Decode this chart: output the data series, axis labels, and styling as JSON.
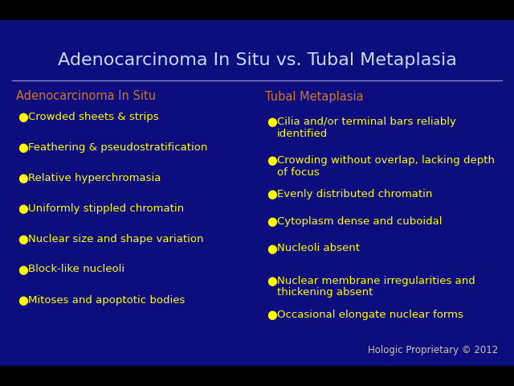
{
  "title": "Adenocarcinoma In Situ vs. Tubal Metaplasia",
  "background_color": "#0d0d80",
  "black_bar_color": "#000000",
  "title_color": "#c8d8f0",
  "title_fontsize": 16,
  "divider_color": "#8888cc",
  "left_heading": "Adenocarcinoma In Situ",
  "right_heading": "Tubal Metaplasia",
  "heading_color": "#cc7722",
  "heading_fontsize": 10.5,
  "bullet_color": "#ffff00",
  "bullet_text_color": "#ffff00",
  "bullet_fontsize": 9.5,
  "left_bullets": [
    "Crowded sheets & strips",
    "Feathering & pseudostratification",
    "Relative hyperchromasia",
    "Uniformly stippled chromatin",
    "Nuclear size and shape variation",
    "Block-like nucleoli",
    "Mitoses and apoptotic bodies"
  ],
  "right_bullets_line1": [
    "Cilia and/or terminal bars reliably",
    "Crowding without overlap, lacking depth",
    "Evenly distributed chromatin",
    "Cytoplasm dense and cuboidal",
    "Nucleoli absent",
    "Nuclear membrane irregularities and",
    "Occasional elongate nuclear forms"
  ],
  "right_bullets_line2": [
    "identified",
    "of focus",
    "",
    "",
    "",
    "thickening absent",
    ""
  ],
  "footer": "Hologic Proprietary © 2012",
  "footer_color": "#c8c8a0",
  "footer_fontsize": 8.5
}
